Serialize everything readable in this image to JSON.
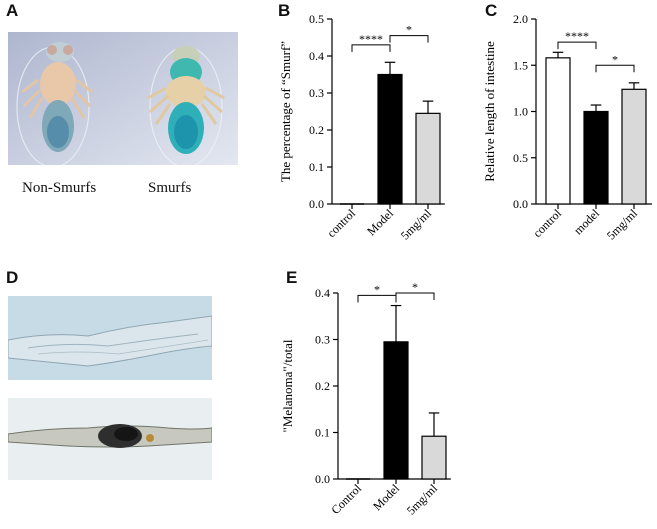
{
  "panels": {
    "a": "A",
    "b": "B",
    "c": "C",
    "d": "D",
    "e": "E"
  },
  "captions": {
    "non_smurfs": "Non-Smurfs",
    "smurfs": "Smurfs"
  },
  "colors": {
    "white_bar": "#ffffff",
    "black_bar": "#000000",
    "grey_bar": "#d9d9d9",
    "photo_bg": "#cdd3e6",
    "gut_bg": "#c8dde8"
  },
  "chart_data": [
    {
      "id": "B",
      "type": "bar",
      "ylabel": "The percentage of “Smurf”",
      "categories": [
        "control",
        "Model",
        "5mg/ml"
      ],
      "values": [
        0.0,
        0.35,
        0.245
      ],
      "errors": [
        0.0,
        0.033,
        0.033
      ],
      "bar_colors": [
        "#ffffff",
        "#000000",
        "#d9d9d9"
      ],
      "ylim": [
        0,
        0.5
      ],
      "yticks": [
        "0.0",
        "0.1",
        "0.2",
        "0.3",
        "0.4",
        "0.5"
      ],
      "significance": [
        {
          "from": 0,
          "to": 1,
          "label": "****",
          "level": 0.43
        },
        {
          "from": 1,
          "to": 2,
          "label": "*",
          "level": 0.455
        }
      ]
    },
    {
      "id": "C",
      "type": "bar",
      "ylabel": "Relative length of intestine",
      "categories": [
        "control",
        "model",
        "5mg/ml"
      ],
      "values": [
        1.58,
        1.0,
        1.24
      ],
      "errors": [
        0.06,
        0.07,
        0.07
      ],
      "bar_colors": [
        "#ffffff",
        "#000000",
        "#d9d9d9"
      ],
      "ylim": [
        0,
        2.0
      ],
      "yticks": [
        "0.0",
        "0.5",
        "1.0",
        "1.5",
        "2.0"
      ],
      "significance": [
        {
          "from": 0,
          "to": 1,
          "label": "****",
          "level": 1.75
        },
        {
          "from": 1,
          "to": 2,
          "label": "*",
          "level": 1.5
        }
      ]
    },
    {
      "id": "E",
      "type": "bar",
      "ylabel": "\"Melanoma\"/total",
      "categories": [
        "Control",
        "Model",
        "5mg/ml"
      ],
      "values": [
        0.0,
        0.295,
        0.092
      ],
      "errors": [
        0.0,
        0.078,
        0.05
      ],
      "bar_colors": [
        "#ffffff",
        "#000000",
        "#d9d9d9"
      ],
      "ylim": [
        0,
        0.4
      ],
      "yticks": [
        "0.0",
        "0.1",
        "0.2",
        "0.3",
        "0.4"
      ],
      "significance": [
        {
          "from": 0,
          "to": 1,
          "label": "*",
          "level": 0.395
        },
        {
          "from": 1,
          "to": 2,
          "label": "*",
          "level": 0.4
        }
      ]
    }
  ]
}
